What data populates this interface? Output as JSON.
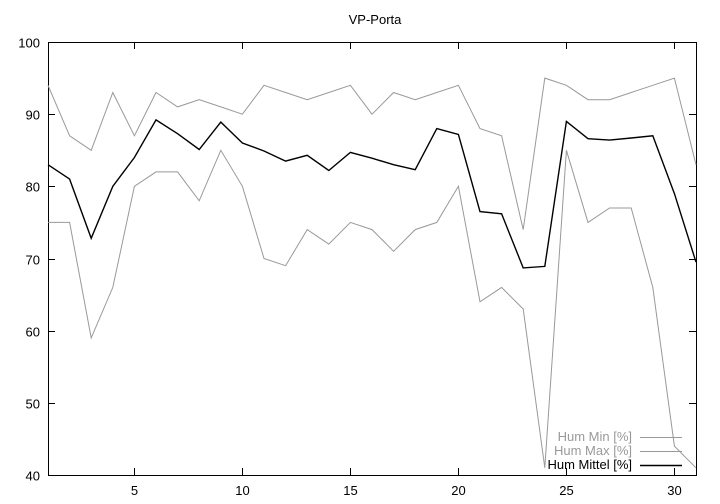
{
  "chart_data": {
    "type": "line",
    "title": "VP-Porta",
    "xlabel": "",
    "ylabel": "",
    "xlim": [
      1,
      31
    ],
    "ylim": [
      40,
      100
    ],
    "x_ticks": [
      5,
      10,
      15,
      20,
      25,
      30
    ],
    "y_ticks": [
      40,
      50,
      60,
      70,
      80,
      90,
      100
    ],
    "grid": false,
    "legend_position": "bottom-right",
    "x": [
      1,
      2,
      3,
      4,
      5,
      6,
      7,
      8,
      9,
      10,
      11,
      12,
      13,
      14,
      15,
      16,
      17,
      18,
      19,
      20,
      21,
      22,
      23,
      24,
      25,
      26,
      27,
      28,
      29,
      30,
      31
    ],
    "series": [
      {
        "name": "Hum Min [%]",
        "color": "#999999",
        "values": [
          75,
          75,
          59,
          66,
          80,
          82,
          82,
          78,
          85,
          80,
          70,
          69,
          74,
          72,
          75,
          74,
          71,
          74,
          75,
          80,
          64,
          66,
          63,
          41,
          85,
          75,
          77,
          77,
          66,
          44,
          41
        ]
      },
      {
        "name": "Hum Max [%]",
        "color": "#999999",
        "values": [
          94,
          87,
          85,
          93,
          87,
          93,
          91,
          92,
          91,
          90,
          94,
          93,
          92,
          93,
          94,
          90,
          93,
          92,
          93,
          94,
          88,
          87,
          74,
          95,
          94,
          92,
          92,
          93,
          94,
          95,
          83
        ]
      },
      {
        "name": "Hum Mittel [%]",
        "color": "#000000",
        "values": [
          83,
          81,
          72.8,
          80,
          84,
          89.2,
          87.3,
          85.1,
          88.9,
          86,
          84.9,
          83.5,
          84.3,
          82.2,
          84.7,
          83.9,
          83,
          82.3,
          88,
          87.2,
          76.5,
          76.2,
          68.7,
          68.9,
          89,
          86.6,
          86.4,
          86.7,
          87,
          79,
          69.5
        ]
      }
    ]
  }
}
